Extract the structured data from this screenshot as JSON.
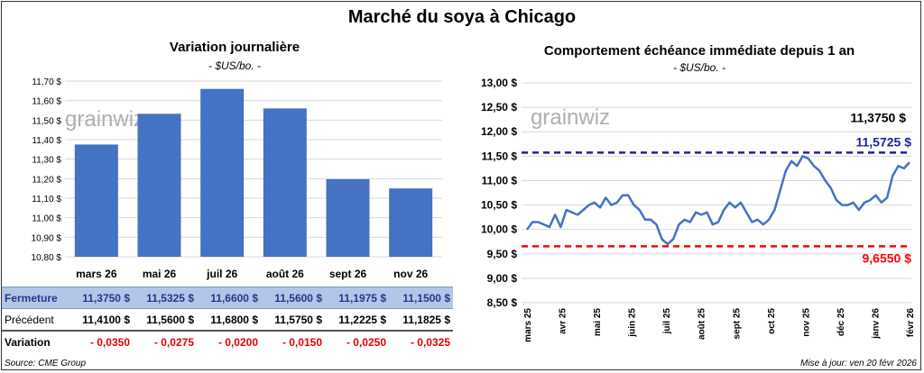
{
  "title": "Marché du soya à Chicago",
  "watermark": "grainwiz",
  "left": {
    "title": "Variation journalière",
    "subtitle": "- $US/bo. -",
    "chart_data": {
      "type": "bar",
      "categories": [
        "mars 26",
        "mai 26",
        "juil 26",
        "août 26",
        "sept 26",
        "nov 26"
      ],
      "values": [
        11.375,
        11.5325,
        11.66,
        11.56,
        11.1975,
        11.15
      ],
      "ylim": [
        10.8,
        11.7
      ],
      "yticks": [
        "10,80 $",
        "10,90 $",
        "11,00 $",
        "11,10 $",
        "11,20 $",
        "11,30 $",
        "11,40 $",
        "11,50 $",
        "11,60 $",
        "11,70 $"
      ],
      "bar_color": "#4472c4",
      "grid": true
    },
    "table": {
      "rows": [
        {
          "label": "Fermeture",
          "values": [
            "11,3750  $",
            "11,5325  $",
            "11,6600  $",
            "11,5600  $",
            "11,1975  $",
            "11,1500  $"
          ]
        },
        {
          "label": "Précédent",
          "values": [
            "11,4100  $",
            "11,5600  $",
            "11,6800  $",
            "11,5750  $",
            "11,2225  $",
            "11,1825  $"
          ]
        },
        {
          "label": "Variation",
          "values": [
            "- 0,0350",
            "- 0,0275",
            "- 0,0200",
            "- 0,0150",
            "- 0,0250",
            "- 0,0325"
          ]
        }
      ]
    }
  },
  "right": {
    "title": "Comportement  échéance  immédiate  depuis  1 an",
    "subtitle": "- $US/bo. -",
    "chart_data": {
      "type": "line",
      "x_labels": [
        "mars 25",
        "avr 25",
        "mai 25",
        "juin 25",
        "juil 25",
        "août 25",
        "sept 25",
        "oct 25",
        "nov 25",
        "déc 25",
        "janv 26",
        "févr 26"
      ],
      "ylim": [
        8.5,
        13.0
      ],
      "yticks": [
        "8,50 $",
        "9,00 $",
        "9,50 $",
        "10,00 $",
        "10,50 $",
        "11,00 $",
        "11,50 $",
        "12,00 $",
        "12,50 $",
        "13,00 $"
      ],
      "series": [
        {
          "values": [
            10.0,
            10.15,
            10.15,
            10.1,
            10.05,
            10.3,
            10.05,
            10.4,
            10.35,
            10.3,
            10.4,
            10.5,
            10.55,
            10.45,
            10.65,
            10.5,
            10.55,
            10.7,
            10.7,
            10.5,
            10.4,
            10.2,
            10.2,
            10.1,
            9.8,
            9.7,
            9.8,
            10.1,
            10.2,
            10.15,
            10.35,
            10.3,
            10.35,
            10.1,
            10.15,
            10.4,
            10.55,
            10.45,
            10.55,
            10.35,
            10.15,
            10.2,
            10.1,
            10.2,
            10.4,
            10.8,
            11.2,
            11.4,
            11.3,
            11.5,
            11.45,
            11.3,
            11.2,
            11.0,
            10.85,
            10.6,
            10.5,
            10.5,
            10.55,
            10.4,
            10.55,
            10.6,
            10.7,
            10.55,
            10.65,
            11.1,
            11.3,
            11.25,
            11.375
          ]
        }
      ],
      "color": "#4472c4",
      "high": {
        "value": 11.5725,
        "label": "11,5725  $",
        "color": "#1f1fa3"
      },
      "low": {
        "value": 9.655,
        "label": "9,6550  $",
        "color": "#ff0000"
      },
      "last_label": "11,3750 $",
      "grid": true
    }
  },
  "footer": {
    "source": "Source: CME Group",
    "update": "Mise à jour: ven 20 févr 2026"
  }
}
